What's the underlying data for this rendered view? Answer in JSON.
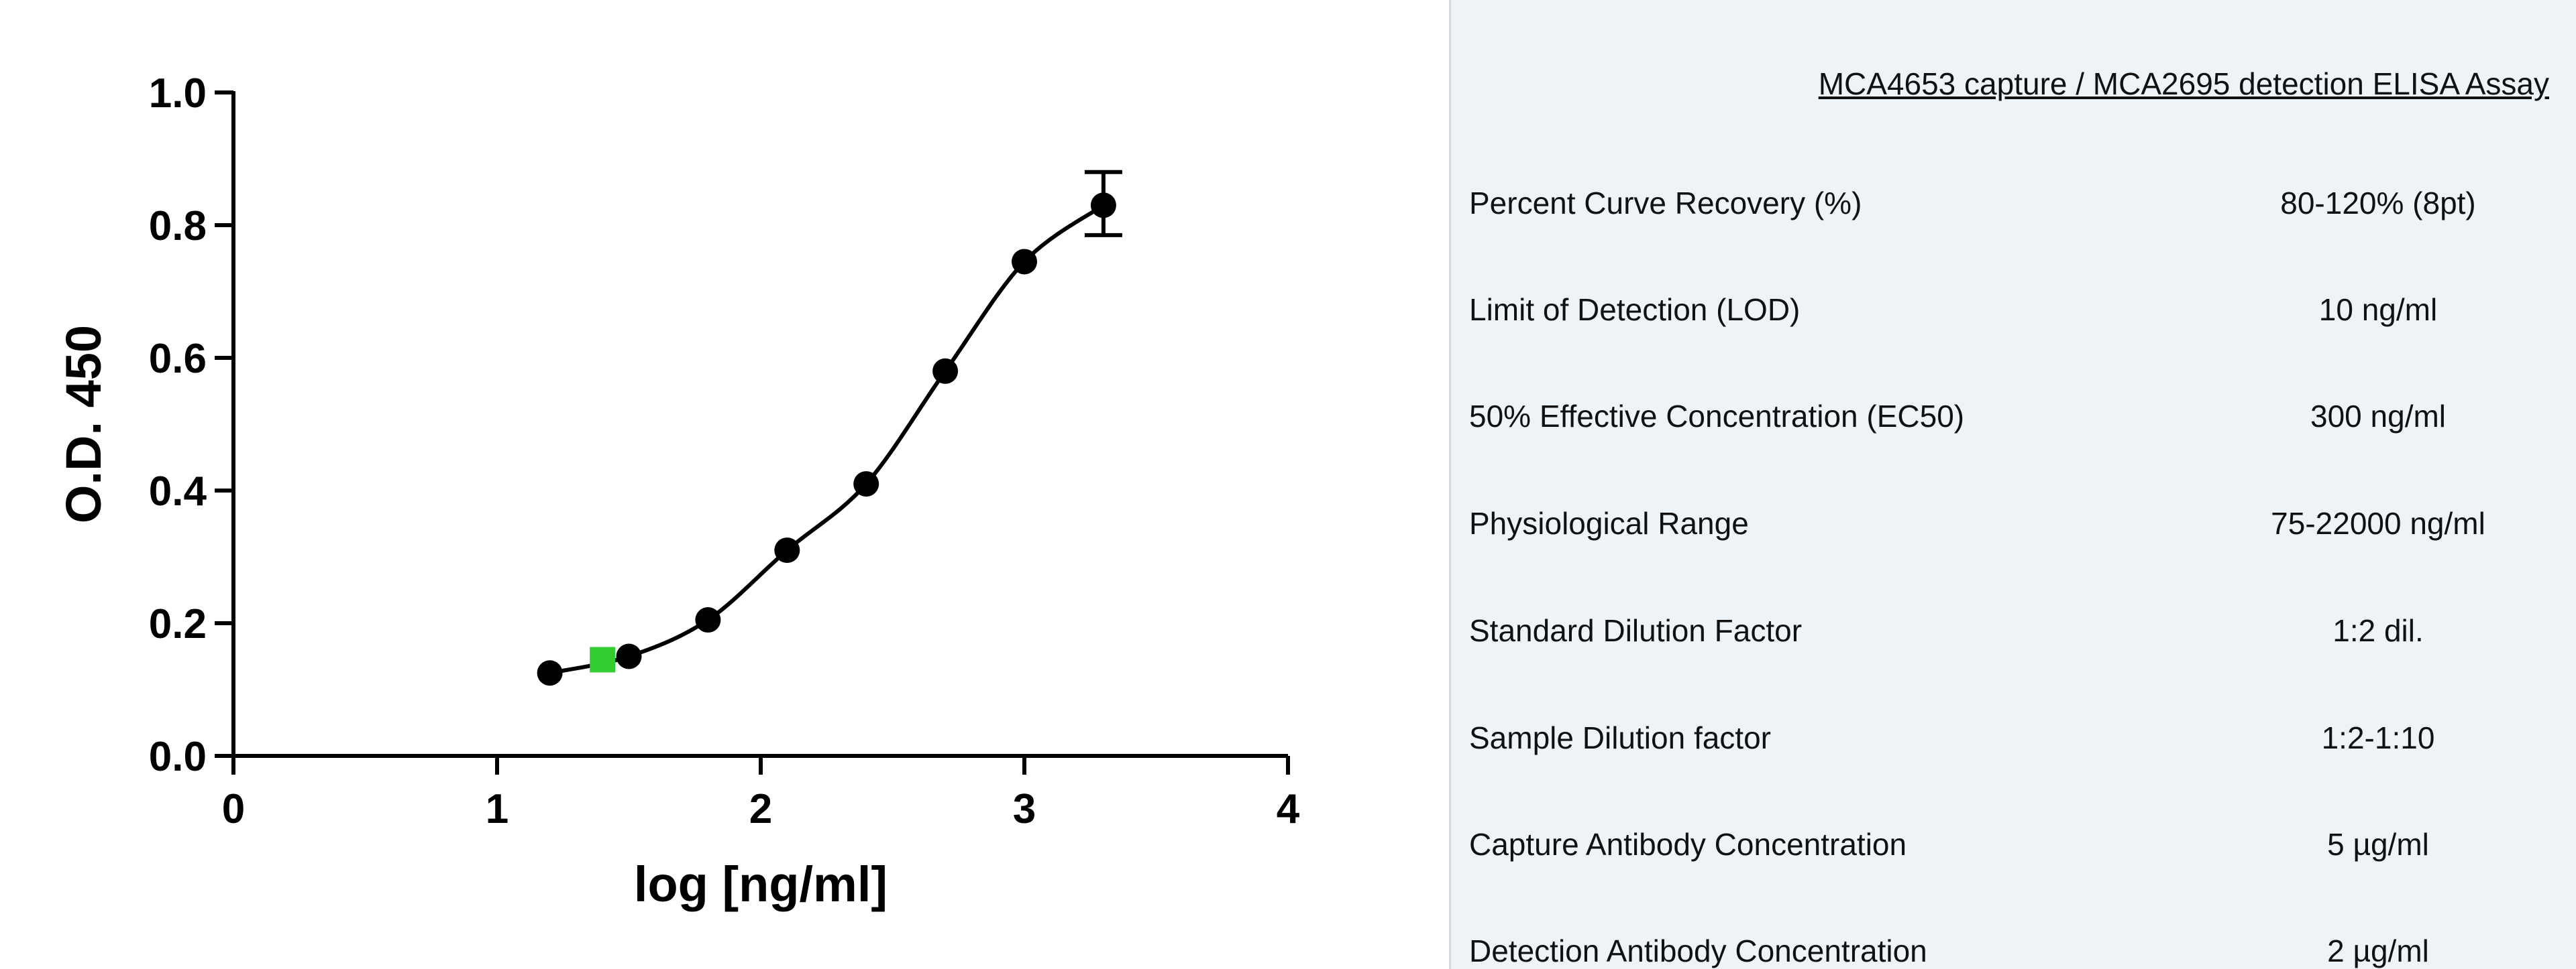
{
  "chart_data": {
    "type": "scatter",
    "title": "",
    "xlabel": "log [ng/ml]",
    "ylabel": "O.D. 450",
    "xlim": [
      0,
      4
    ],
    "ylim": [
      0,
      1.0
    ],
    "x_ticks": [
      "0",
      "1",
      "2",
      "3",
      "4"
    ],
    "y_ticks": [
      "0.0",
      "0.2",
      "0.4",
      "0.6",
      "0.8",
      "1.0"
    ],
    "grid": false,
    "legend": "none",
    "series": [
      {
        "points": [
          {
            "x": 1.2,
            "y": 0.125
          },
          {
            "x": 1.5,
            "y": 0.15
          },
          {
            "x": 1.8,
            "y": 0.205
          },
          {
            "x": 2.1,
            "y": 0.31
          },
          {
            "x": 2.4,
            "y": 0.41
          },
          {
            "x": 2.7,
            "y": 0.58
          },
          {
            "x": 3.0,
            "y": 0.745
          },
          {
            "x": 3.3,
            "y": 0.83,
            "y_err_low": 0.785,
            "y_err_high": 0.88
          }
        ],
        "color": "#000000",
        "fit": "sigmoidal curve"
      }
    ],
    "highlight_point": {
      "x": 1.4,
      "y": 0.145,
      "color": "#33cc33"
    }
  },
  "table": {
    "title": "MCA4653 capture / MCA2695 detection ELISA Assay",
    "rows": [
      {
        "label": "Percent Curve Recovery (%)",
        "value": "80-120% (8pt)"
      },
      {
        "label": "Limit of Detection (LOD)",
        "value": "10 ng/ml"
      },
      {
        "label": "50% Effective Concentration (EC50)",
        "value": "300 ng/ml"
      },
      {
        "label": "Physiological Range",
        "value": "75-22000 ng/ml"
      },
      {
        "label": "Standard Dilution Factor",
        "value": "1:2 dil."
      },
      {
        "label": "Sample Dilution factor",
        "value": "1:2-1:10"
      },
      {
        "label": "Capture Antibody Concentration",
        "value": "5 µg/ml"
      },
      {
        "label": "Detection Antibody Concentration",
        "value": "2 µg/ml"
      }
    ]
  }
}
